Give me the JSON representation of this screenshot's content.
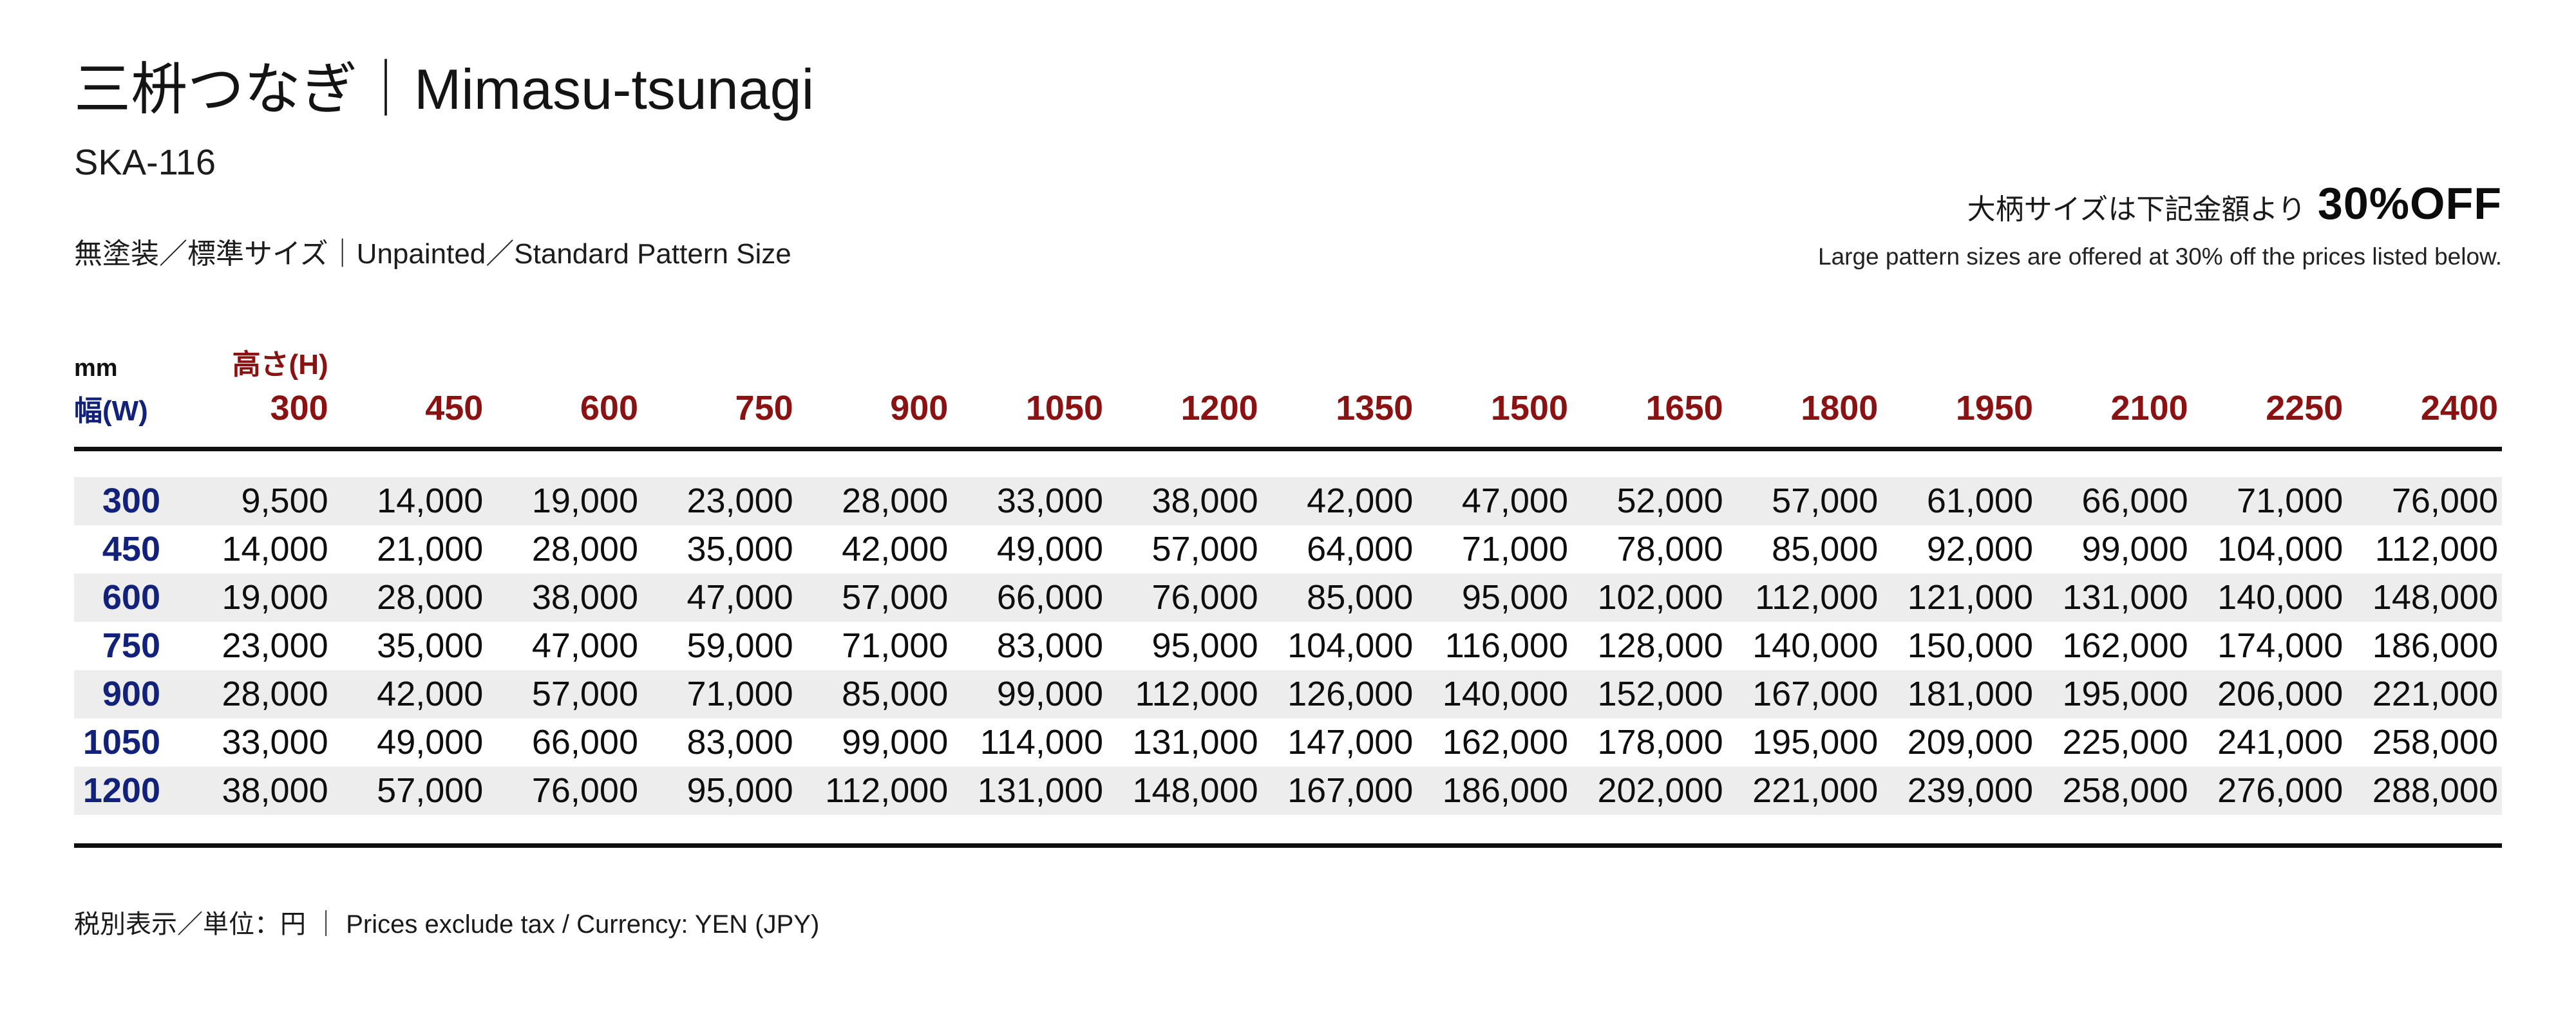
{
  "page": {
    "title": "三枡つなぎ｜Mimasu-tsunagi",
    "product_code": "SKA-116",
    "variant": "無塗装／標準サイズ｜Unpainted／Standard Pattern Size",
    "promo": {
      "jp": "大柄サイズは下記金額より",
      "highlight": "30%OFF",
      "en": "Large pattern sizes are offered at 30% off the prices listed below."
    },
    "footnote": "税別表示／単位：円 ｜ Prices exclude tax / Currency: YEN (JPY)"
  },
  "table": {
    "unit_label": "mm",
    "height_axis_label": "高さ(H)",
    "width_axis_label": "幅(W)",
    "columns": [
      "300",
      "450",
      "600",
      "750",
      "900",
      "1050",
      "1200",
      "1350",
      "1500",
      "1650",
      "1800",
      "1950",
      "2100",
      "2250",
      "2400"
    ],
    "rows": [
      {
        "width": "300",
        "prices": [
          "9,500",
          "14,000",
          "19,000",
          "23,000",
          "28,000",
          "33,000",
          "38,000",
          "42,000",
          "47,000",
          "52,000",
          "57,000",
          "61,000",
          "66,000",
          "71,000",
          "76,000"
        ]
      },
      {
        "width": "450",
        "prices": [
          "14,000",
          "21,000",
          "28,000",
          "35,000",
          "42,000",
          "49,000",
          "57,000",
          "64,000",
          "71,000",
          "78,000",
          "85,000",
          "92,000",
          "99,000",
          "104,000",
          "112,000"
        ]
      },
      {
        "width": "600",
        "prices": [
          "19,000",
          "28,000",
          "38,000",
          "47,000",
          "57,000",
          "66,000",
          "76,000",
          "85,000",
          "95,000",
          "102,000",
          "112,000",
          "121,000",
          "131,000",
          "140,000",
          "148,000"
        ]
      },
      {
        "width": "750",
        "prices": [
          "23,000",
          "35,000",
          "47,000",
          "59,000",
          "71,000",
          "83,000",
          "95,000",
          "104,000",
          "116,000",
          "128,000",
          "140,000",
          "150,000",
          "162,000",
          "174,000",
          "186,000"
        ]
      },
      {
        "width": "900",
        "prices": [
          "28,000",
          "42,000",
          "57,000",
          "71,000",
          "85,000",
          "99,000",
          "112,000",
          "126,000",
          "140,000",
          "152,000",
          "167,000",
          "181,000",
          "195,000",
          "206,000",
          "221,000"
        ]
      },
      {
        "width": "1050",
        "prices": [
          "33,000",
          "49,000",
          "66,000",
          "83,000",
          "99,000",
          "114,000",
          "131,000",
          "147,000",
          "162,000",
          "178,000",
          "195,000",
          "209,000",
          "225,000",
          "241,000",
          "258,000"
        ]
      },
      {
        "width": "1200",
        "prices": [
          "38,000",
          "57,000",
          "76,000",
          "95,000",
          "112,000",
          "131,000",
          "148,000",
          "167,000",
          "186,000",
          "202,000",
          "221,000",
          "239,000",
          "258,000",
          "276,000",
          "288,000"
        ]
      }
    ]
  },
  "colors": {
    "accent_red": "#8a1212",
    "accent_blue": "#12217a",
    "row_shade": "#ededed",
    "rule_black": "#0f0f0f"
  }
}
